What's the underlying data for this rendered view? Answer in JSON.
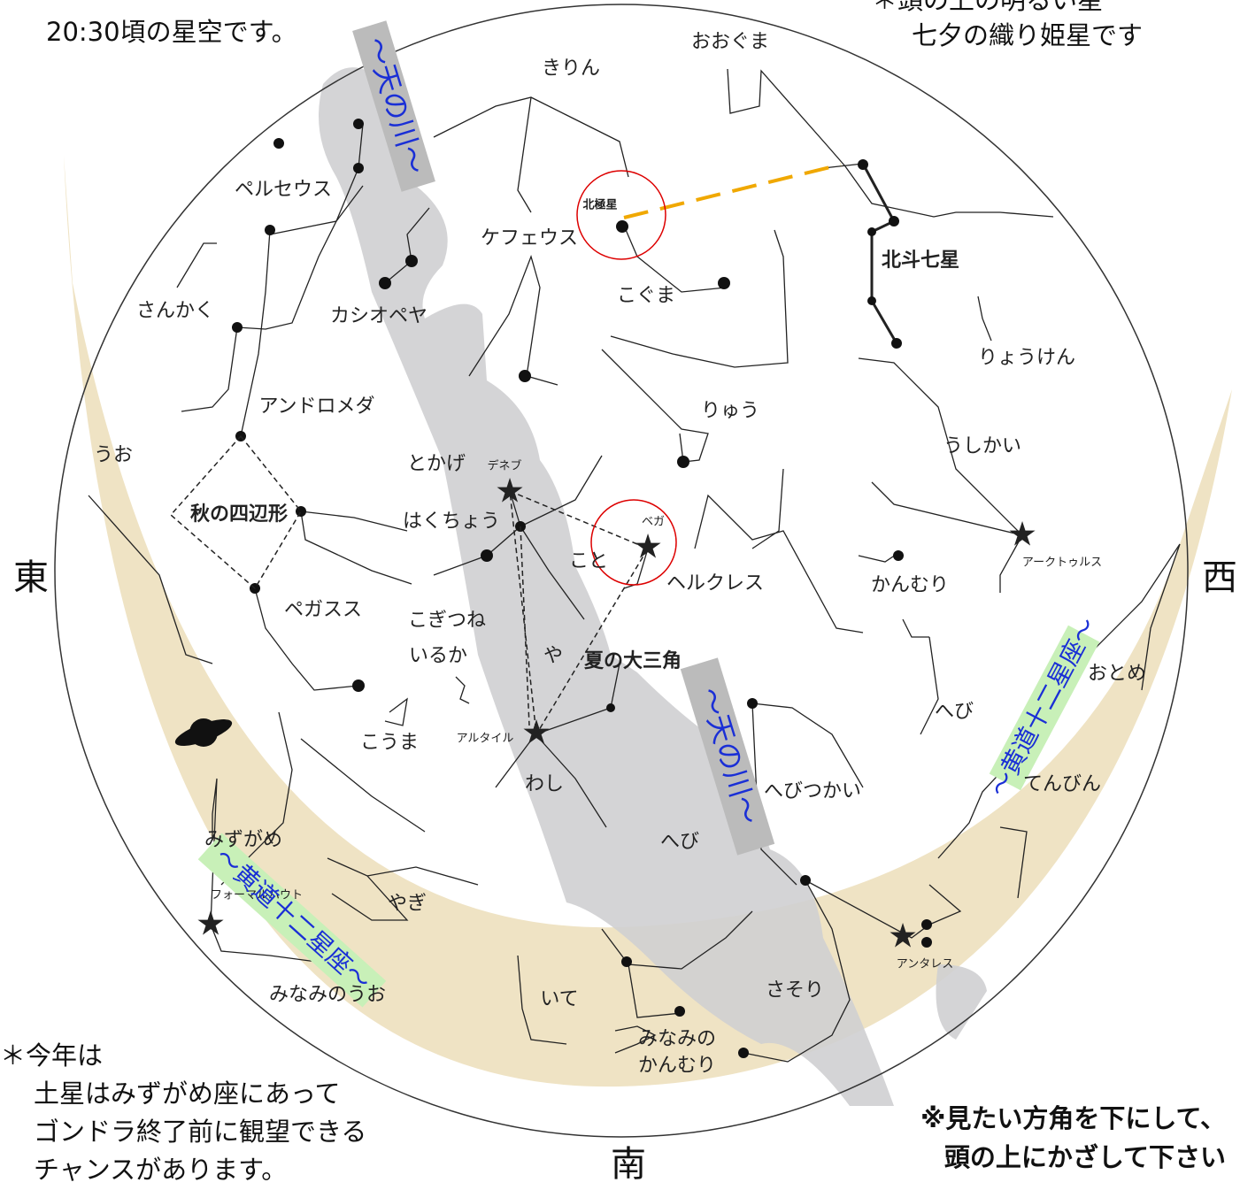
{
  "notes": {
    "top_left": "20:30頃の星空です。",
    "top_right": [
      "＊頭の上の明るい星",
      "七夕の織り姫星です"
    ],
    "saturn": [
      "＊今年は",
      "土星はみずがめ座にあって",
      "ゴンドラ終了前に観望できる",
      "チャンスがあります。"
    ],
    "usage": [
      "※見たい方角を下にして、",
      "頭の上にかざして下さい"
    ]
  },
  "directions": {
    "east": "東",
    "west": "西",
    "south": "南"
  },
  "milky_way": "〜天の川〜",
  "ecliptic": "〜黄道十二星座〜",
  "labels": [
    "おおぐま",
    "きりん",
    "ペルセウス",
    "北極星",
    "ケフェウス",
    "北斗七星",
    "さんかく",
    "カシオペヤ",
    "こぐま",
    "りょうけん",
    "アンドロメダ",
    "りゅう",
    "うしかい",
    "うお",
    "とかげ",
    "デネブ",
    "秋の四辺形",
    "はくちょう",
    "ベガ",
    "アークトゥルス",
    "こと",
    "ヘルクレス",
    "かんむり",
    "ペガスス",
    "こぎつね",
    "いるか",
    "や",
    "夏の大三角",
    "おとめ",
    "へび",
    "こうま",
    "アルタイル",
    "わし",
    "へびつかい",
    "てんびん",
    "みずがめ",
    "へび",
    "フォーマルハウト",
    "やぎ",
    "アンタレス",
    "さそり",
    "みなみのうお",
    "いて",
    "みなみの",
    "かんむり"
  ]
}
